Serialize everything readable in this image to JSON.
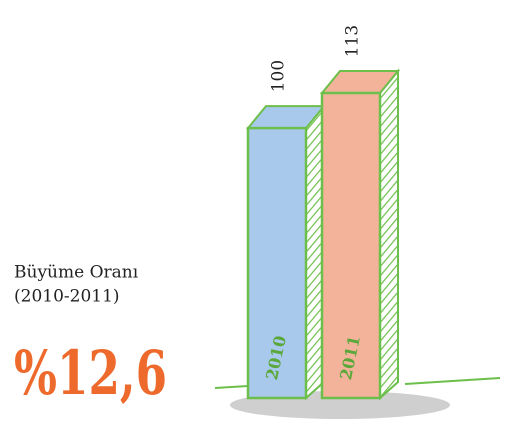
{
  "chart_data": {
    "type": "bar",
    "categories": [
      "2010",
      "2011"
    ],
    "values": [
      100,
      113
    ],
    "colors": [
      "#a9c9ec",
      "#f3b39a"
    ],
    "annotations": [
      "Büyüme Oranı",
      "(2010-2011)",
      "%12,6"
    ]
  }
}
